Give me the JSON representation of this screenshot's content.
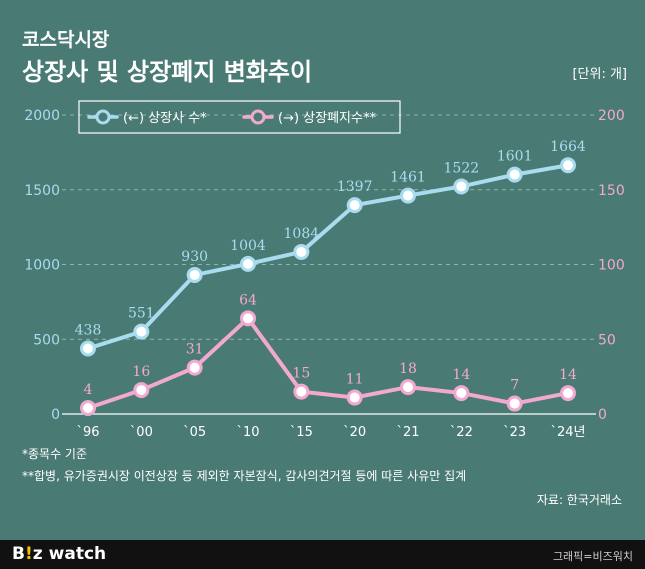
{
  "header": {
    "kicker": "코스닥시장",
    "title": "상장사 및 상장폐지 변화추이",
    "unit": "[단위: 개]"
  },
  "notes": {
    "note1": "*종목수 기준",
    "note2": "**합병, 유가증권시장 이전상장 등 제외한 자본잠식, 감사의견거절 등에 따른 사유만 집계",
    "source": "자료: 한국거래소"
  },
  "footer": {
    "logo_b": "B",
    "logo_bang": "!",
    "logo_z": "z",
    "logo_watch": "watch",
    "credit": "그래픽=비즈워치"
  },
  "colors": {
    "background": "#4a7a74",
    "listed": "#a9dcef",
    "delisted": "#f2a9cf",
    "left_axis": "#a9dcef",
    "right_axis": "#f2a9cf",
    "grid": "#8fb4ae"
  },
  "chart_data": {
    "type": "line",
    "categories": [
      "`96",
      "`00",
      "`05",
      "`10",
      "`15",
      "`20",
      "`21",
      "`22",
      "`23",
      "`24년"
    ],
    "series": [
      {
        "name": "(←) 상장사 수*",
        "axis": "left",
        "values": [
          438,
          551,
          930,
          1004,
          1084,
          1397,
          1461,
          1522,
          1601,
          1664
        ]
      },
      {
        "name": "(→) 상장폐지수**",
        "axis": "right",
        "values": [
          4,
          16,
          31,
          64,
          15,
          11,
          18,
          14,
          7,
          14
        ]
      }
    ],
    "ylim_left": [
      0,
      2000
    ],
    "ylim_right": [
      0,
      200
    ],
    "yticks_left": [
      0,
      500,
      1000,
      1500,
      2000
    ],
    "yticks_right": [
      0,
      50,
      100,
      150,
      200
    ],
    "grid": true,
    "legend": "top-left"
  }
}
